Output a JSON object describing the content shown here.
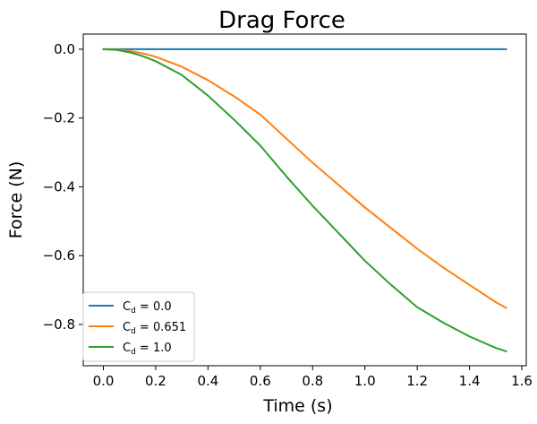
{
  "chart_data": {
    "type": "line",
    "title": "Drag Force",
    "xlabel": "Time (s)",
    "ylabel": "Force (N)",
    "xlim": [
      -0.077,
      1.617
    ],
    "ylim": [
      -0.92,
      0.044
    ],
    "xticks": [
      0.0,
      0.2,
      0.4,
      0.6,
      0.8,
      1.0,
      1.2,
      1.4,
      1.6
    ],
    "xtick_labels": [
      "0.0",
      "0.2",
      "0.4",
      "0.6",
      "0.8",
      "1.0",
      "1.2",
      "1.4",
      "1.6"
    ],
    "yticks": [
      0.0,
      -0.2,
      -0.4,
      -0.6,
      -0.8
    ],
    "ytick_labels": [
      "0.0",
      "−0.2",
      "−0.4",
      "−0.6",
      "−0.8"
    ],
    "grid": false,
    "legend_position": "lower-left",
    "series": [
      {
        "name": "C_d = 0.0",
        "legend_main": "C",
        "legend_sub": "d",
        "legend_value": " = 0.0",
        "color": "#1f77b4",
        "x": [
          0.0,
          0.1,
          0.2,
          0.3,
          0.4,
          0.5,
          0.6,
          0.7,
          0.8,
          0.9,
          1.0,
          1.1,
          1.2,
          1.3,
          1.4,
          1.5,
          1.54
        ],
        "y": [
          0.0,
          0.0,
          0.0,
          0.0,
          0.0,
          0.0,
          0.0,
          0.0,
          0.0,
          0.0,
          0.0,
          0.0,
          0.0,
          0.0,
          0.0,
          0.0,
          0.0
        ]
      },
      {
        "name": "C_d = 0.651",
        "legend_main": "C",
        "legend_sub": "d",
        "legend_value": " = 0.651",
        "color": "#ff7f0e",
        "x": [
          0.0,
          0.05,
          0.1,
          0.15,
          0.2,
          0.3,
          0.4,
          0.5,
          0.6,
          0.7,
          0.8,
          0.9,
          1.0,
          1.1,
          1.2,
          1.3,
          1.4,
          1.5,
          1.54
        ],
        "y": [
          0.0,
          -0.001,
          -0.005,
          -0.012,
          -0.022,
          -0.051,
          -0.09,
          -0.137,
          -0.19,
          -0.26,
          -0.33,
          -0.395,
          -0.46,
          -0.52,
          -0.58,
          -0.635,
          -0.685,
          -0.735,
          -0.752
        ]
      },
      {
        "name": "C_d = 1.0",
        "legend_main": "C",
        "legend_sub": "d",
        "legend_value": " = 1.0",
        "color": "#2ca02c",
        "x": [
          0.0,
          0.05,
          0.1,
          0.15,
          0.2,
          0.3,
          0.4,
          0.5,
          0.6,
          0.7,
          0.8,
          0.9,
          1.0,
          1.1,
          1.2,
          1.3,
          1.4,
          1.5,
          1.54
        ],
        "y": [
          0.0,
          -0.002,
          -0.009,
          -0.02,
          -0.035,
          -0.075,
          -0.135,
          -0.205,
          -0.28,
          -0.37,
          -0.455,
          -0.535,
          -0.615,
          -0.685,
          -0.75,
          -0.795,
          -0.835,
          -0.868,
          -0.878
        ]
      }
    ]
  }
}
